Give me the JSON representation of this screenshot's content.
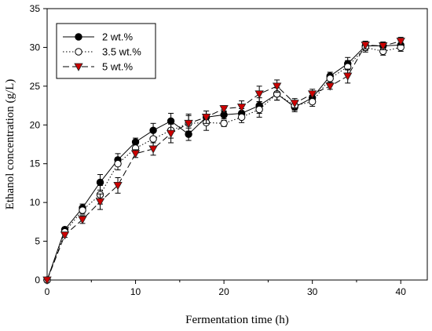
{
  "chart_data": {
    "type": "line",
    "title": "",
    "xlabel": "Fermentation time (h)",
    "ylabel": "Ethanol concentration (g/L)",
    "xlim": [
      0,
      43
    ],
    "ylim": [
      0,
      35
    ],
    "xticks": [
      0,
      10,
      20,
      30,
      40
    ],
    "yticks": [
      0,
      5,
      10,
      15,
      20,
      25,
      30,
      35
    ],
    "grid": false,
    "legend_position": "top-left",
    "x": [
      0,
      2,
      4,
      6,
      8,
      10,
      12,
      14,
      16,
      18,
      20,
      22,
      24,
      26,
      28,
      30,
      32,
      34,
      36,
      38,
      40
    ],
    "series": [
      {
        "name": "2 wt.%",
        "marker": "filled-circle",
        "line_style": "solid",
        "color": "#000000",
        "values": [
          0,
          6.5,
          9.3,
          12.6,
          15.5,
          17.8,
          19.3,
          20.5,
          18.8,
          21.0,
          21.3,
          21.5,
          22.5,
          24.0,
          22.3,
          23.5,
          26.3,
          27.9,
          30.2,
          30.2,
          30.3
        ],
        "errors": [
          0,
          0.3,
          0.5,
          1.0,
          0.8,
          0.5,
          0.9,
          1.0,
          0.8,
          0.8,
          0.5,
          0.6,
          1.0,
          0.8,
          0.6,
          0.7,
          0.5,
          0.8,
          0.6,
          0.4,
          0.5
        ]
      },
      {
        "name": "3.5 wt.%",
        "marker": "open-circle",
        "line_style": "dotted",
        "color": "#000000",
        "values": [
          0,
          6.2,
          9.0,
          11.0,
          15.0,
          17.0,
          18.2,
          19.3,
          20.2,
          20.3,
          20.2,
          21.0,
          22.0,
          24.0,
          22.5,
          23.0,
          26.0,
          27.5,
          30.0,
          29.5,
          30.0
        ],
        "errors": [
          0,
          0.3,
          0.5,
          1.2,
          0.8,
          0.6,
          0.9,
          1.0,
          1.0,
          1.0,
          0.4,
          0.7,
          1.0,
          0.8,
          0.6,
          0.6,
          0.5,
          0.8,
          0.6,
          0.5,
          0.5
        ]
      },
      {
        "name": "5 wt.%",
        "marker": "filled-triangle-down",
        "line_style": "dashed",
        "color": "#cc0000",
        "values": [
          0,
          5.8,
          7.8,
          10.1,
          12.2,
          16.3,
          16.9,
          18.9,
          20.2,
          21.0,
          22.1,
          22.3,
          24.0,
          25.0,
          22.8,
          24.0,
          25.0,
          26.3,
          30.3,
          30.2,
          30.8
        ],
        "errors": [
          0,
          0.3,
          0.5,
          1.0,
          1.0,
          0.5,
          0.8,
          1.2,
          1.2,
          0.8,
          0.4,
          0.8,
          1.0,
          0.8,
          0.6,
          0.6,
          0.4,
          0.9,
          0.5,
          0.5,
          0.5
        ]
      }
    ]
  }
}
